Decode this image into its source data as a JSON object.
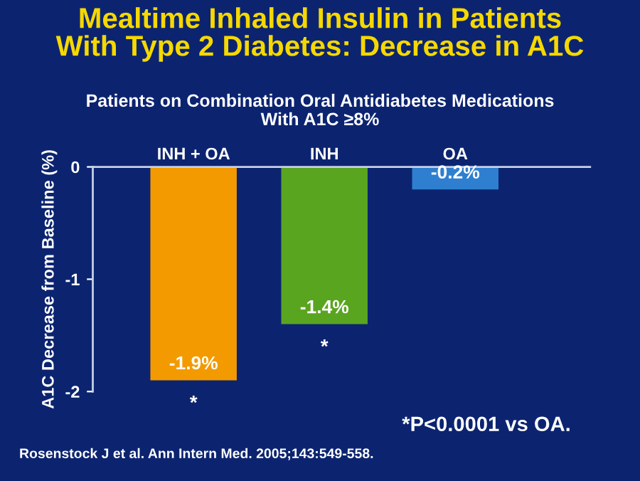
{
  "chart_data": {
    "type": "bar",
    "title": "Mealtime Inhaled Insulin in Patients\nWith Type 2 Diabetes: Decrease in A1C",
    "subtitle": "Patients on Combination Oral Antidiabetes Medications\nWith A1C ≥8%",
    "ylabel": "A1C Decrease from Baseline (%)",
    "categories": [
      "INH + OA",
      "INH",
      "OA"
    ],
    "values": [
      -1.9,
      -1.4,
      -0.2
    ],
    "colors": [
      "#f39a00",
      "#5aa520",
      "#2f7fd0"
    ],
    "value_labels": [
      "-1.9%",
      "-1.4%",
      "-0.2%"
    ],
    "ylim": [
      -2,
      0
    ],
    "yticks": [
      0,
      -1,
      -2
    ],
    "grid": false,
    "legend": false,
    "annotations": [
      {
        "text": "*",
        "x": "INH + OA",
        "y": -1.9
      },
      {
        "text": "*",
        "x": "INH",
        "y": -1.4
      },
      "*P<0.0001 vs OA.",
      "Rosenstock J et al. Ann Intern Med. 2005;143:549-558."
    ]
  }
}
